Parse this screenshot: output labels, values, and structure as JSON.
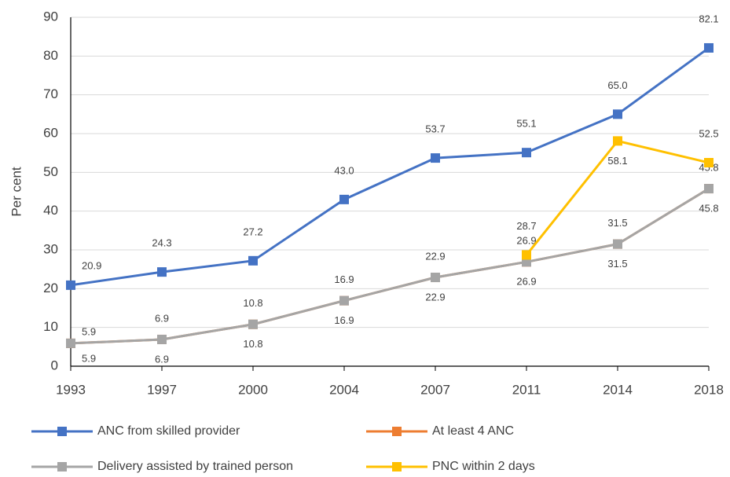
{
  "chart_data": {
    "type": "line",
    "ylabel": "Per cent",
    "categories": [
      "1993",
      "1997",
      "2000",
      "2004",
      "2007",
      "2011",
      "2014",
      "2018"
    ],
    "series": [
      {
        "name": "ANC from skilled provider",
        "color": "#4472c4",
        "values": [
          20.9,
          24.3,
          27.2,
          43.0,
          53.7,
          55.1,
          65.0,
          82.1
        ],
        "value_labels": [
          "20.9",
          "24.3",
          "27.2",
          "43.0",
          "53.7",
          "55.1",
          "65.0",
          "82.1"
        ]
      },
      {
        "name": "At least 4 ANC",
        "color": "#ed7d31",
        "values": [
          5.9,
          6.9,
          10.8,
          16.9,
          22.9,
          26.9,
          31.5,
          45.8
        ]
      },
      {
        "name": "Delivery assisted by trained person",
        "color": "#a5a5a5",
        "values": [
          5.9,
          6.9,
          10.8,
          16.9,
          22.9,
          26.9,
          31.5,
          45.8
        ]
      },
      {
        "name": "PNC within 2 days",
        "color": "#ffc000",
        "values": [
          null,
          null,
          null,
          null,
          null,
          28.7,
          58.1,
          52.5
        ]
      }
    ],
    "ylim": [
      0,
      90
    ],
    "yticks": [
      0,
      10,
      20,
      30,
      40,
      50,
      60,
      70,
      80,
      90
    ],
    "grid": true
  }
}
